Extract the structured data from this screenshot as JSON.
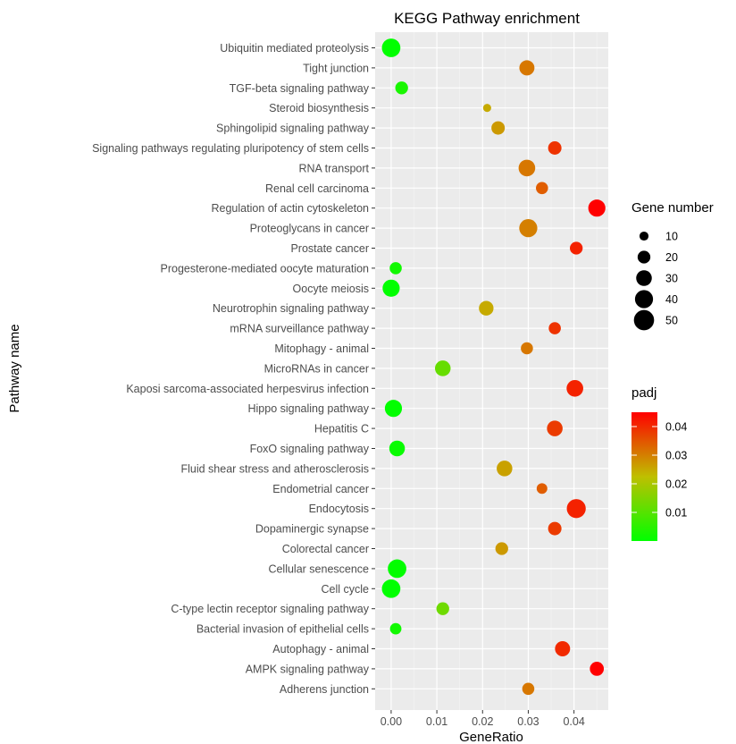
{
  "chart_data": {
    "type": "scatter",
    "title": "KEGG Pathway enrichment",
    "xlabel": "GeneRatio",
    "ylabel": "Pathway name",
    "xlim": [
      -0.0035,
      0.0475
    ],
    "xticks": [
      0.0,
      0.01,
      0.02,
      0.03,
      0.04
    ],
    "xtick_labels": [
      "0.00",
      "0.01",
      "0.02",
      "0.03",
      "0.04"
    ],
    "grid": true,
    "categories": [
      "Ubiquitin mediated proteolysis",
      "Tight junction",
      "TGF-beta signaling pathway",
      "Steroid biosynthesis",
      "Sphingolipid signaling pathway",
      "Signaling pathways regulating pluripotency of stem cells",
      "RNA transport",
      "Renal cell carcinoma",
      "Regulation of actin cytoskeleton",
      "Proteoglycans in cancer",
      "Prostate cancer",
      "Progesterone-mediated oocyte maturation",
      "Oocyte meiosis",
      "Neurotrophin signaling pathway",
      "mRNA surveillance pathway",
      "Mitophagy - animal",
      "MicroRNAs in cancer",
      "Kaposi sarcoma-associated herpesvirus infection",
      "Hippo signaling pathway",
      "Hepatitis C",
      "FoxO signaling pathway",
      "Fluid shear stress and atherosclerosis",
      "Endometrial cancer",
      "Endocytosis",
      "Dopaminergic synapse",
      "Colorectal cancer",
      "Cellular senescence",
      "Cell cycle",
      "C-type lectin receptor signaling pathway",
      "Bacterial invasion of epithelial cells",
      "Autophagy - animal",
      "AMPK signaling pathway",
      "Adherens junction"
    ],
    "gene_ratio": [
      0.0,
      0.0297,
      0.0023,
      0.021,
      0.0234,
      0.0358,
      0.0297,
      0.033,
      0.045,
      0.03,
      0.0405,
      0.001,
      0.0,
      0.0208,
      0.0358,
      0.0297,
      0.0113,
      0.0402,
      0.0005,
      0.0358,
      0.0013,
      0.0248,
      0.033,
      0.0405,
      0.0358,
      0.0242,
      0.0013,
      0.0,
      0.0113,
      0.001,
      0.0375,
      0.045,
      0.03
    ],
    "gene_number": [
      42,
      28,
      20,
      8,
      22,
      22,
      34,
      18,
      36,
      40,
      20,
      18,
      36,
      26,
      18,
      18,
      30,
      34,
      36,
      30,
      30,
      30,
      14,
      44,
      22,
      20,
      42,
      42,
      20,
      16,
      28,
      24,
      18
    ],
    "padj": [
      0.0001,
      0.031,
      0.003,
      0.025,
      0.027,
      0.039,
      0.031,
      0.034,
      0.0455,
      0.03,
      0.041,
      0.002,
      0.0001,
      0.025,
      0.039,
      0.031,
      0.012,
      0.041,
      0.0002,
      0.038,
      0.001,
      0.026,
      0.034,
      0.041,
      0.038,
      0.027,
      0.0002,
      0.0001,
      0.013,
      0.002,
      0.04,
      0.0455,
      0.031
    ],
    "legend_size": {
      "title": "Gene number",
      "values": [
        10,
        20,
        30,
        40,
        50
      ],
      "labels": [
        "10",
        "20",
        "30",
        "40",
        "50"
      ]
    },
    "legend_color": {
      "title": "padj",
      "range": [
        0.0,
        0.045
      ],
      "ticks": [
        0.01,
        0.02,
        0.03,
        0.04
      ],
      "tick_labels": [
        "0.01",
        "0.02",
        "0.03",
        "0.04"
      ],
      "low_color": "#00ff00",
      "high_color": "#ff0000"
    },
    "panel_background": "#ebebeb",
    "grid_color": "#ffffff",
    "legend_position": "right"
  }
}
